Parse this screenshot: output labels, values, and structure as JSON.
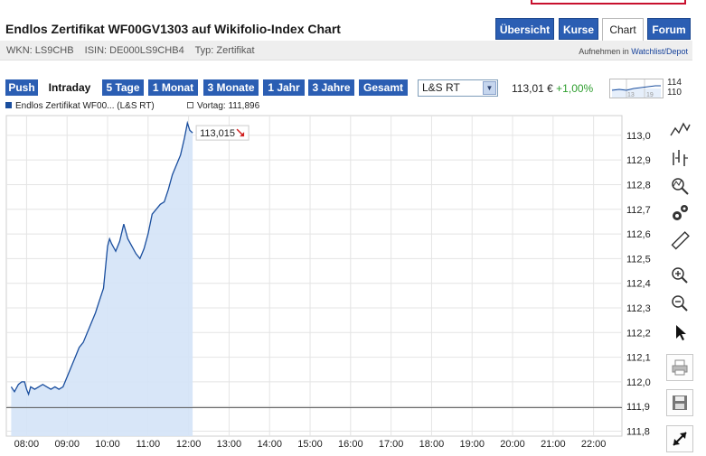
{
  "header": {
    "title": "Endlos Zertifikat WF00GV1303 auf Wikifolio-Index Chart",
    "wkn": "WKN: LS9CHB",
    "isin": "ISIN: DE000LS9CHB4",
    "typ": "Typ: Zertifikat",
    "watch_prefix": "Aufnehmen in",
    "watch_link": "Watchlist/Depot"
  },
  "nav_tabs": [
    "Übersicht",
    "Kurse",
    "Chart",
    "Forum"
  ],
  "active_tab": "Chart",
  "range_buttons": [
    "Push",
    "Intraday",
    "5 Tage",
    "1 Monat",
    "3 Monate",
    "1 Jahr",
    "3 Jahre",
    "Gesamt"
  ],
  "active_range": "Intraday",
  "exchange": {
    "selected": "L&S RT"
  },
  "quote": {
    "price": "113,01 €",
    "change": "+1,00%"
  },
  "mini_chart": {
    "label_a": "13",
    "label_b": "19",
    "scale_top": "114",
    "scale_bottom": "110"
  },
  "legend": {
    "series": "Endlos Zertifikat WF00... (L&S RT)",
    "previous": "Vortag: 111,896"
  },
  "toolbar_icons": [
    "line-chart-icon",
    "ohlc-chart-icon",
    "indicator-zoom-icon",
    "settings-gears-icon",
    "ruler-icon",
    "zoom-in-icon",
    "zoom-out-icon",
    "cursor-icon",
    "print-icon",
    "save-icon",
    "fullscreen-icon"
  ],
  "chart_data": {
    "type": "area",
    "x_ticks": [
      "08:00",
      "09:00",
      "10:00",
      "11:00",
      "12:00",
      "13:00",
      "14:00",
      "15:00",
      "16:00",
      "17:00",
      "18:00",
      "19:00",
      "20:00",
      "21:00",
      "22:00"
    ],
    "y_ticks": [
      "113,0",
      "112,9",
      "112,8",
      "112,7",
      "112,6",
      "112,5",
      "112,4",
      "112,3",
      "112,2",
      "112,1",
      "112,0",
      "111,9",
      "111,8"
    ],
    "y_range": [
      111.78,
      113.08
    ],
    "x_range_hours": [
      7.5,
      22.7
    ],
    "previous_close": 111.896,
    "last_label": "113,015",
    "color": "#1a4e9e",
    "fill": "#d4e3f7",
    "points": [
      [
        7.62,
        111.98
      ],
      [
        7.7,
        111.96
      ],
      [
        7.8,
        111.99
      ],
      [
        7.88,
        112.0
      ],
      [
        7.95,
        112.0
      ],
      [
        8.0,
        111.97
      ],
      [
        8.05,
        111.95
      ],
      [
        8.1,
        111.98
      ],
      [
        8.2,
        111.97
      ],
      [
        8.3,
        111.98
      ],
      [
        8.4,
        111.99
      ],
      [
        8.5,
        111.98
      ],
      [
        8.6,
        111.97
      ],
      [
        8.7,
        111.98
      ],
      [
        8.8,
        111.97
      ],
      [
        8.9,
        111.98
      ],
      [
        9.0,
        112.02
      ],
      [
        9.1,
        112.06
      ],
      [
        9.2,
        112.1
      ],
      [
        9.3,
        112.14
      ],
      [
        9.4,
        112.16
      ],
      [
        9.5,
        112.2
      ],
      [
        9.6,
        112.24
      ],
      [
        9.7,
        112.28
      ],
      [
        9.8,
        112.33
      ],
      [
        9.9,
        112.38
      ],
      [
        10.0,
        112.55
      ],
      [
        10.05,
        112.58
      ],
      [
        10.1,
        112.56
      ],
      [
        10.2,
        112.53
      ],
      [
        10.3,
        112.57
      ],
      [
        10.4,
        112.64
      ],
      [
        10.5,
        112.58
      ],
      [
        10.6,
        112.55
      ],
      [
        10.7,
        112.52
      ],
      [
        10.8,
        112.5
      ],
      [
        10.9,
        112.54
      ],
      [
        11.0,
        112.6
      ],
      [
        11.1,
        112.68
      ],
      [
        11.2,
        112.7
      ],
      [
        11.3,
        112.72
      ],
      [
        11.4,
        112.73
      ],
      [
        11.5,
        112.78
      ],
      [
        11.6,
        112.84
      ],
      [
        11.7,
        112.88
      ],
      [
        11.8,
        112.92
      ],
      [
        11.9,
        112.99
      ],
      [
        11.97,
        113.05
      ],
      [
        12.03,
        113.02
      ],
      [
        12.1,
        113.01
      ]
    ]
  }
}
